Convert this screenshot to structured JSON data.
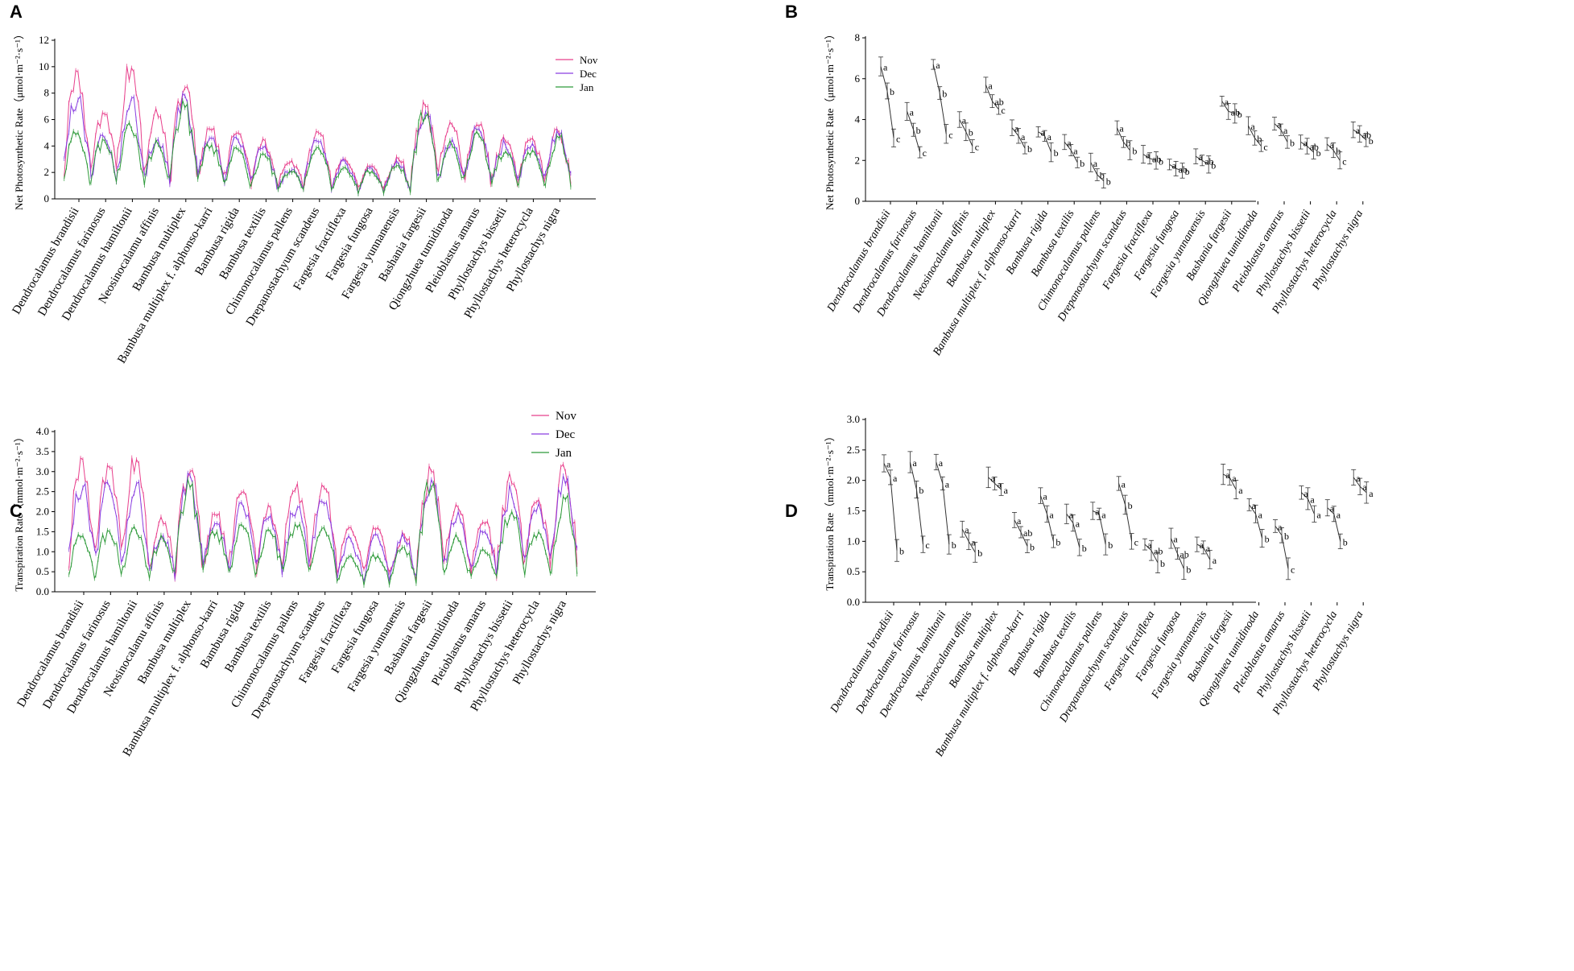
{
  "species": [
    "Dendrocalamus brandisii",
    "Dendrocalamus farinosus",
    "Dendrocalamus hamiltonii",
    "Neosinocalamu affinis",
    "Bambusa multiplex",
    "Bambusa multiplex f. alphonso-karri",
    "Bambusa rigida",
    "Bambusa textilis",
    "Chimonocalamus pallens",
    "Drepanostachyum scandeus",
    "Fargesia fractiflexa",
    "Fargesia fungosa",
    "Fargesia yunnanensis",
    "Bashania fargesii",
    "Qiongzhuea tumidinoda",
    "Pleioblastus amarus",
    "Phyllostachys bissetii",
    "Phyllostachys heterocycla",
    "Phyllostachys nigra"
  ],
  "colors": {
    "nov": "#e8408c",
    "dec": "#8a3ee0",
    "jan": "#2e9a3a",
    "axis": "#000000",
    "mean": "#333333"
  },
  "chart_data": [
    {
      "panel": "A",
      "type": "line",
      "ylabel": "Net Photosynthetic Rate（μmol·m⁻²·s⁻¹）",
      "ylim": [
        0,
        12
      ],
      "yticks": [
        "0",
        "2",
        "4",
        "6",
        "8",
        "10",
        "12"
      ],
      "legend": [
        "Nov",
        "Dec",
        "Jan"
      ],
      "legend_position": "top-right",
      "series": [
        {
          "name": "Nov",
          "values": [
            9.6,
            6.4,
            9.9,
            6.2,
            8.4,
            5.2,
            5.0,
            4.4,
            2.9,
            5.0,
            3.0,
            2.5,
            3.0,
            7.0,
            5.6,
            5.5,
            4.3,
            4.6,
            5.0
          ]
        },
        {
          "name": "Dec",
          "values": [
            7.5,
            4.6,
            7.6,
            4.5,
            7.8,
            4.6,
            4.4,
            4.0,
            2.2,
            4.3,
            2.8,
            2.3,
            2.6,
            6.6,
            4.5,
            5.3,
            4.0,
            4.2,
            4.8
          ]
        },
        {
          "name": "Jan",
          "values": [
            5.0,
            4.4,
            5.3,
            4.1,
            6.9,
            4.1,
            3.7,
            3.3,
            2.0,
            3.9,
            2.4,
            2.1,
            2.5,
            6.2,
            4.0,
            4.8,
            3.6,
            3.7,
            4.6
          ]
        }
      ]
    },
    {
      "panel": "B",
      "type": "scatter",
      "ylabel": "Net Photosynthetic Rate（μmol·m⁻²·s⁻¹）",
      "ylim": [
        0,
        8
      ],
      "yticks": [
        "0",
        "2",
        "4",
        "6",
        "8"
      ],
      "series": [
        {
          "name": "Nov",
          "values": [
            6.6,
            4.4,
            6.7,
            4.0,
            5.7,
            3.6,
            3.4,
            2.9,
            1.9,
            3.6,
            2.3,
            1.8,
            2.2,
            4.9,
            3.7,
            3.8,
            2.9,
            2.8,
            3.5
          ]
        },
        {
          "name": "Dec",
          "values": [
            5.4,
            3.5,
            5.3,
            3.4,
            4.9,
            3.2,
            3.2,
            2.5,
            1.3,
            2.9,
            2.1,
            1.6,
            2.0,
            4.4,
            3.1,
            3.5,
            2.7,
            2.5,
            3.3
          ]
        },
        {
          "name": "Jan",
          "values": [
            3.1,
            2.4,
            3.3,
            2.7,
            4.5,
            2.6,
            2.4,
            1.9,
            1.0,
            2.5,
            2.0,
            1.5,
            1.8,
            4.3,
            2.7,
            2.9,
            2.4,
            2.0,
            3.0
          ]
        }
      ],
      "letters": [
        [
          "a",
          "b",
          "c"
        ],
        [
          "a",
          "b",
          "c"
        ],
        [
          "a",
          "b",
          "c"
        ],
        [
          "a",
          "b",
          "c"
        ],
        [
          "a",
          "ab",
          "c"
        ],
        [
          "a",
          "a",
          "b"
        ],
        [
          "a",
          "a",
          "b"
        ],
        [
          "a",
          "a",
          "b"
        ],
        [
          "a",
          "b",
          "b"
        ],
        [
          "a",
          "b",
          "b"
        ],
        [
          "a",
          "ab",
          "b"
        ],
        [
          "a",
          "ab",
          "b"
        ],
        [
          "a",
          "ab",
          "b"
        ],
        [
          "a",
          "ab",
          "b"
        ],
        [
          "a",
          "b",
          "c"
        ],
        [
          "a",
          "a",
          "b"
        ],
        [
          "a",
          "ab",
          "b"
        ],
        [
          "a",
          "b",
          "c"
        ],
        [
          "a",
          "ab",
          "b"
        ]
      ]
    },
    {
      "panel": "C",
      "type": "line",
      "ylabel": "Transpiration Rate（mmol·m⁻²·s⁻¹）",
      "ylim": [
        0.0,
        4.0
      ],
      "yticks": [
        "0.0",
        "0.5",
        "1.0",
        "1.5",
        "2.0",
        "2.5",
        "3.0",
        "3.5",
        "4.0"
      ],
      "legend": [
        "Nov",
        "Dec",
        "Jan"
      ],
      "legend_position": "top-right",
      "series": [
        {
          "name": "Nov",
          "values": [
            3.3,
            3.1,
            3.3,
            1.7,
            3.0,
            1.9,
            2.5,
            2.1,
            2.7,
            2.6,
            1.6,
            1.6,
            1.4,
            3.0,
            2.1,
            1.7,
            2.7,
            2.3,
            3.0
          ]
        },
        {
          "name": "Dec",
          "values": [
            2.6,
            2.6,
            2.7,
            1.4,
            2.9,
            1.7,
            2.1,
            1.9,
            2.1,
            2.2,
            1.3,
            1.4,
            1.3,
            2.8,
            2.0,
            1.5,
            2.4,
            2.2,
            2.7
          ]
        },
        {
          "name": "Jan",
          "values": [
            1.4,
            1.5,
            1.5,
            1.3,
            2.6,
            1.5,
            1.6,
            1.5,
            1.6,
            1.6,
            0.9,
            0.9,
            1.1,
            2.6,
            1.3,
            1.0,
            2.0,
            1.5,
            2.3
          ]
        }
      ]
    },
    {
      "panel": "D",
      "type": "scatter",
      "ylabel": "Transpiration Rate（mmol·m⁻²·s⁻¹）",
      "ylim": [
        0.0,
        3.0
      ],
      "yticks": [
        "0.0",
        "0.5",
        "1.0",
        "1.5",
        "2.0",
        "2.5",
        "3.0"
      ],
      "series": [
        {
          "name": "Nov",
          "values": [
            2.28,
            2.3,
            2.3,
            1.2,
            2.05,
            1.35,
            1.75,
            1.45,
            1.5,
            1.95,
            0.95,
            1.05,
            0.95,
            2.1,
            1.6,
            1.25,
            1.8,
            1.55,
            2.05
          ]
        },
        {
          "name": "Dec",
          "values": [
            2.05,
            1.85,
            1.95,
            1.0,
            1.95,
            1.15,
            1.45,
            1.3,
            1.45,
            1.6,
            0.85,
            0.8,
            0.9,
            2.05,
            1.45,
            1.1,
            1.7,
            1.45,
            1.9
          ]
        },
        {
          "name": "Jan",
          "values": [
            0.85,
            0.95,
            0.95,
            0.82,
            1.85,
            0.92,
            1.0,
            0.9,
            0.95,
            1.0,
            0.65,
            0.55,
            0.7,
            1.85,
            1.05,
            0.55,
            1.45,
            1.0,
            1.8
          ]
        }
      ],
      "letters": [
        [
          "a",
          "a",
          "b"
        ],
        [
          "a",
          "b",
          "c"
        ],
        [
          "a",
          "a",
          "b"
        ],
        [
          "a",
          "a",
          "b"
        ],
        [
          "a",
          "a",
          "a"
        ],
        [
          "a",
          "ab",
          "b"
        ],
        [
          "a",
          "a",
          "b"
        ],
        [
          "a",
          "a",
          "b"
        ],
        [
          "a",
          "a",
          "b"
        ],
        [
          "a",
          "b",
          "c"
        ],
        [
          "a",
          "ab",
          "b"
        ],
        [
          "a",
          "ab",
          "b"
        ],
        [
          "a",
          "a",
          "a"
        ],
        [
          "a",
          "a",
          "a"
        ],
        [
          "a",
          "a",
          "b"
        ],
        [
          "a",
          "b",
          "c"
        ],
        [
          "a",
          "a",
          "a"
        ],
        [
          "a",
          "a",
          "b"
        ],
        [
          "a",
          "a",
          "a"
        ]
      ]
    }
  ],
  "panels": [
    "A",
    "B",
    "C",
    "D"
  ]
}
